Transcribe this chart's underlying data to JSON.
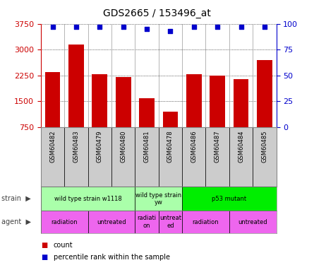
{
  "title": "GDS2665 / 153496_at",
  "samples": [
    "GSM60482",
    "GSM60483",
    "GSM60479",
    "GSM60480",
    "GSM60481",
    "GSM60478",
    "GSM60486",
    "GSM60487",
    "GSM60484",
    "GSM60485"
  ],
  "counts": [
    2350,
    3150,
    2280,
    2200,
    1600,
    1200,
    2280,
    2250,
    2150,
    2700
  ],
  "percentiles": [
    97,
    97,
    97,
    97,
    95,
    93,
    97,
    97,
    97,
    97
  ],
  "ylim_left": [
    750,
    3750
  ],
  "ylim_right": [
    0,
    100
  ],
  "yticks_left": [
    750,
    1500,
    2250,
    3000,
    3750
  ],
  "yticks_right": [
    0,
    25,
    50,
    75,
    100
  ],
  "bar_color": "#cc0000",
  "dot_color": "#0000cc",
  "strain_groups": [
    {
      "label": "wild type strain w1118",
      "start": 0,
      "end": 4,
      "color": "#aaffaa"
    },
    {
      "label": "wild type strain\nyw",
      "start": 4,
      "end": 6,
      "color": "#aaffaa"
    },
    {
      "label": "p53 mutant",
      "start": 6,
      "end": 10,
      "color": "#00ee00"
    }
  ],
  "agent_labels": [
    "radiation",
    "untreated",
    "radiati\non",
    "untreat\ned",
    "radiation",
    "untreated"
  ],
  "agent_starts": [
    0,
    2,
    4,
    5,
    6,
    8
  ],
  "agent_ends": [
    2,
    4,
    5,
    6,
    8,
    10
  ],
  "agent_color": "#ee66ee",
  "xcell_color": "#cccccc",
  "left_axis_color": "#cc0000",
  "right_axis_color": "#0000cc",
  "grid_color": "#000000"
}
